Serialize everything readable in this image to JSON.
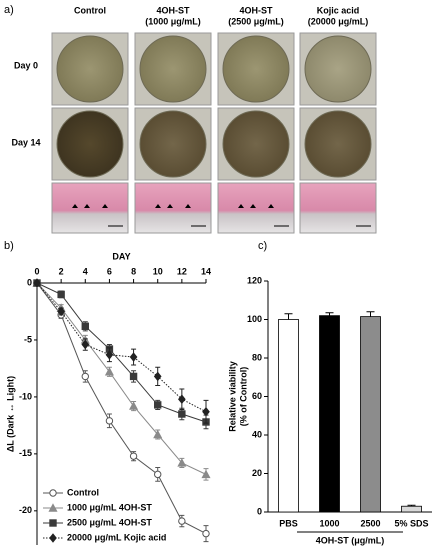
{
  "panel_a": {
    "label": "a)",
    "columns": [
      [
        "Control"
      ],
      [
        "4OH-ST",
        "(1000 μg/mL)"
      ],
      [
        "4OH-ST",
        "(2500 μg/mL)"
      ],
      [
        "Kojic acid",
        "(20000 μg/mL)"
      ]
    ],
    "rows": [
      "Day 0",
      "Day 14"
    ]
  },
  "chart_data": [
    {
      "type": "line",
      "panel_label": "b)",
      "x_label": "DAY",
      "y_label": "ΔL (Dark ↔ Light)",
      "x": [
        0,
        2,
        4,
        6,
        8,
        10,
        12,
        14
      ],
      "xlim": [
        0,
        14
      ],
      "xticks": [
        0,
        2,
        4,
        6,
        8,
        10,
        12,
        14
      ],
      "ylim": [
        -23,
        0
      ],
      "yticks": [
        0,
        -5,
        -10,
        -15,
        -20
      ],
      "legend": "lower left",
      "series": [
        {
          "name": "Control",
          "color": "#555555",
          "marker": "circle",
          "linestyle": "solid",
          "values": [
            0,
            -2.8,
            -8.2,
            -12.1,
            -15.2,
            -16.8,
            -20.9,
            -22
          ],
          "errors": [
            0,
            0.3,
            0.5,
            0.6,
            0.4,
            0.6,
            0.5,
            0.7
          ]
        },
        {
          "name": "1000 μg/mL 4OH-ST",
          "color": "#8a8a8a",
          "marker": "triangle",
          "linestyle": "solid",
          "values": [
            0,
            -2.2,
            -5,
            -7.8,
            -10.8,
            -13.3,
            -15.8,
            -16.8
          ],
          "errors": [
            0,
            0.3,
            0.4,
            0.4,
            0.4,
            0.4,
            0.4,
            0.5
          ]
        },
        {
          "name": "2500 μg/mL 4OH-ST",
          "color": "#3a3a3a",
          "marker": "square",
          "linestyle": "solid",
          "values": [
            0,
            -1,
            -3.8,
            -5.8,
            -8.2,
            -10.7,
            -11.5,
            -12.2
          ],
          "errors": [
            0,
            0.3,
            0.4,
            0.4,
            0.5,
            0.4,
            0.5,
            0.6
          ]
        },
        {
          "name": "20000 μg/mL Kojic acid",
          "color": "#222222",
          "marker": "diamond",
          "linestyle": "dotted",
          "values": [
            0,
            -2.5,
            -5.4,
            -6.3,
            -6.5,
            -8.2,
            -10.2,
            -11.3
          ],
          "errors": [
            0,
            0.3,
            0.5,
            0.6,
            0.7,
            0.8,
            0.9,
            1
          ]
        }
      ]
    },
    {
      "type": "bar",
      "panel_label": "c)",
      "y_label": [
        "Relative viability",
        "(% of Control)"
      ],
      "categories": [
        "PBS",
        "1000",
        "2500",
        "5% SDS"
      ],
      "group_label": "4OH-ST (μg/mL)",
      "values": [
        100,
        102,
        101.5,
        3
      ],
      "errors": [
        3,
        1.5,
        2.5,
        0.5
      ],
      "colors": [
        "#ffffff",
        "#000000",
        "#8c8c8c",
        "#d9d9d9"
      ],
      "ylim": [
        0,
        120
      ],
      "yticks": [
        0,
        20,
        40,
        60,
        80,
        100,
        120
      ]
    }
  ]
}
